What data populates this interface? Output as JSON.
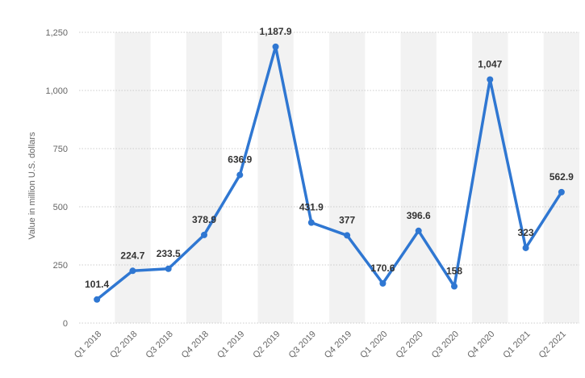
{
  "chart_data": {
    "type": "line",
    "title": "",
    "xlabel": "",
    "ylabel": "Value in million U.S. dollars",
    "categories": [
      "Q1 2018",
      "Q2 2018",
      "Q3 2018",
      "Q4 2018",
      "Q1 2019",
      "Q2 2019",
      "Q3 2019",
      "Q4 2019",
      "Q1 2020",
      "Q2 2020",
      "Q3 2020",
      "Q4 2020",
      "Q1 2021",
      "Q2 2021"
    ],
    "series": [
      {
        "values": [
          101.4,
          224.7,
          233.5,
          378.9,
          636.9,
          1187.9,
          431.9,
          377,
          170.6,
          396.6,
          158,
          1047,
          323,
          562.9
        ]
      }
    ],
    "data_labels": [
      "101.4",
      "224.7",
      "233.5",
      "378.9",
      "636.9",
      "1,187.9",
      "431.9",
      "377",
      "170.6",
      "396.6",
      "158",
      "1,047",
      "323",
      "562.9"
    ],
    "y_ticks": [
      0,
      250,
      500,
      750,
      1000,
      1250
    ],
    "y_tick_labels": [
      "0",
      "250",
      "500",
      "750",
      "1,000",
      "1,250"
    ],
    "ylim": [
      0,
      1250
    ],
    "grid": true,
    "legend": "none",
    "colors": {
      "line": "#2f77d2",
      "band": "#f2f2f2",
      "grid": "#cccccc"
    }
  }
}
